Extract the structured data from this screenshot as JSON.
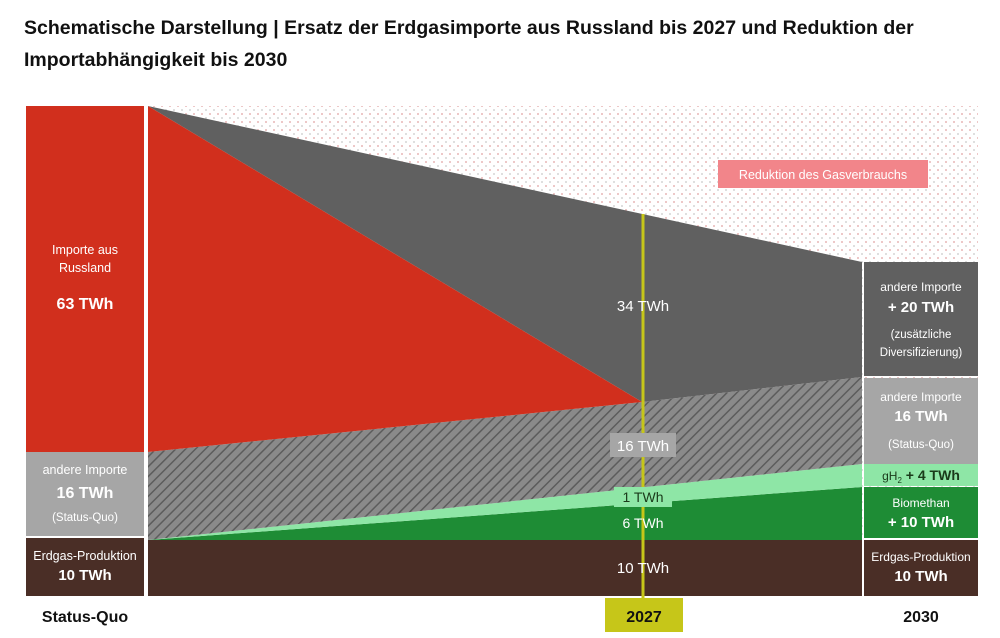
{
  "title": "Schematische Darstellung | Ersatz der Erdgasimporte aus Russland bis 2027 und Reduktion der Importabhängigkeit bis 2030",
  "legend": {
    "reduction_label": "Reduktion des Gasverbrauchs"
  },
  "status_quo": {
    "russia_label_line1": "Importe aus",
    "russia_label_line2": "Russland",
    "russia_value": "63 TWh",
    "other_label": "andere Importe",
    "other_value": "16 TWh",
    "other_note": "(Status-Quo)",
    "production_label": "Erdgas-Produktion",
    "production_value": "10 TWh"
  },
  "mid_2027": {
    "other_new_value": "34 TWh",
    "other_sq_value": "16 TWh",
    "h2_value": "1 TWh",
    "biomethane_value": "6 TWh",
    "production_value": "10 TWh"
  },
  "y2030": {
    "other_new_label": "andere Importe",
    "other_new_value": "+ 20 TWh",
    "other_new_note1": "(zusätzliche",
    "other_new_note2": "Diversifizierung)",
    "other_sq_label": "andere Importe",
    "other_sq_value": "16 TWh",
    "other_sq_note": "(Status-Quo)",
    "h2_prefix": "gH",
    "h2_sub": "2",
    "h2_value": " + 4 TWh",
    "bio_label": "Biomethan",
    "bio_value": "+ 10 TWh",
    "production_label": "Erdgas-Produktion",
    "production_value": "10 TWh"
  },
  "xaxis": {
    "left": "Status-Quo",
    "mid": "2027",
    "right": "2030"
  },
  "colors": {
    "russia": "#d12f1d",
    "other_new": "#606060",
    "other_sq": "#a6a6a6",
    "h2": "#8ee6a6",
    "biomethane": "#1e8c35",
    "production": "#4a2e26",
    "reduction_box": "#f2858a",
    "year_marker": "#c6c619"
  }
}
